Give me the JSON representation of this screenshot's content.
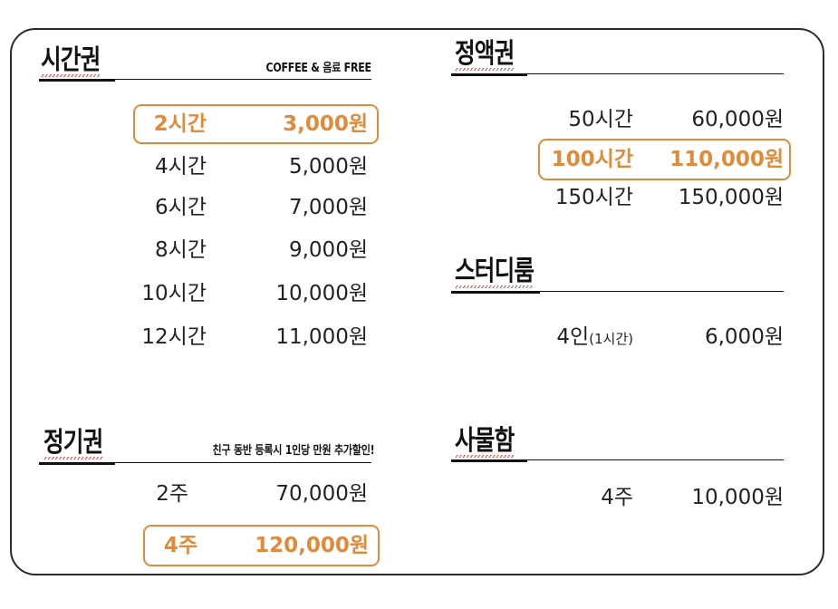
{
  "hourly": {
    "title": "시간권",
    "note": "COFFEE & 음료 FREE",
    "rows": [
      {
        "duration": "2시간",
        "price": "3,000원"
      },
      {
        "duration": "4시간",
        "price": "5,000원"
      },
      {
        "duration": "6시간",
        "price": "7,000원"
      },
      {
        "duration": "8시간",
        "price": "9,000원"
      },
      {
        "duration": "10시간",
        "price": "10,000원"
      },
      {
        "duration": "12시간",
        "price": "11,000원"
      }
    ]
  },
  "fixed": {
    "title": "정액권",
    "rows": [
      {
        "duration": "50시간",
        "price": "60,000원"
      },
      {
        "duration": "100시간",
        "price": "110,000원"
      },
      {
        "duration": "150시간",
        "price": "150,000원"
      }
    ]
  },
  "studyroom": {
    "title": "스터디룸",
    "rows": [
      {
        "duration": "4인",
        "duration_sub": "(1시간)",
        "price": "6,000원"
      }
    ]
  },
  "regular": {
    "title": "정기권",
    "note": "친구 동반 등록시 1인당 만원 추가할인!",
    "rows": [
      {
        "duration": "2주",
        "price": "70,000원"
      },
      {
        "duration": "4주",
        "price": "120,000원"
      }
    ]
  },
  "locker": {
    "title": "사물함",
    "rows": [
      {
        "duration": "4주",
        "price": "10,000원"
      }
    ]
  },
  "colors": {
    "accent": "#e08a3a",
    "text": "#222222",
    "border": "#2a2a2a"
  }
}
